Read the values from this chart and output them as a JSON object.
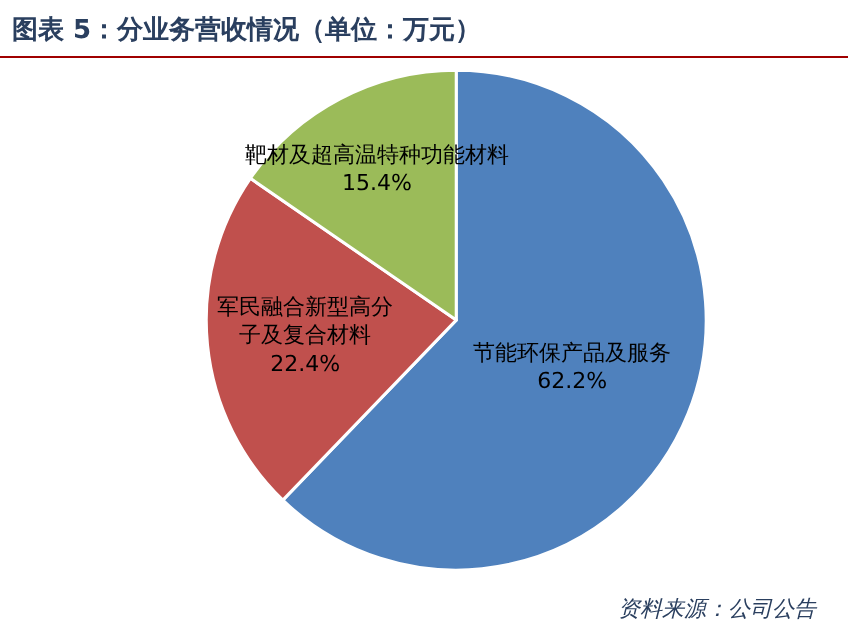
{
  "chart_data": {
    "type": "pie",
    "title": "图表 5：分业务营收情况（单位：万元）",
    "categories": [
      "节能环保产品及服务",
      "军民融合新型高分子及复合材料",
      "靶材及超高温特种功能材料"
    ],
    "values": [
      62.2,
      22.4,
      15.4
    ],
    "value_labels": [
      "62.2%",
      "22.4%",
      "15.4%"
    ],
    "colors": [
      "#4f81bd",
      "#c0504d",
      "#9bbb59"
    ],
    "legend": false,
    "annotations": [
      "资料来源：公司公告"
    ]
  }
}
